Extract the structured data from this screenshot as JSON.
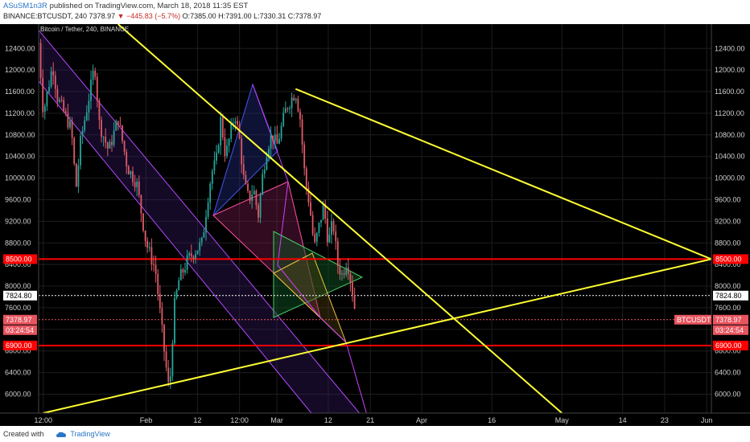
{
  "header": {
    "author": "ASuSM1n3R",
    "published": "published on TradingView.com, March 18, 2018 11:35 EST",
    "symbol_line": "BINANCE:BTCUSDT, 240",
    "change": "▼ −445.83 (−5.7%)",
    "ohlc": "O:7385.00 H:7391.00 L:7330.31 C:7378.97",
    "last_price": "7378.97"
  },
  "footer": {
    "created_with": "Created with",
    "brand": "TradingView"
  },
  "chart_data": {
    "type": "candlestick",
    "title": "Bitcoin / Tether, 240, BINANCE",
    "y_range": [
      5650,
      12850
    ],
    "y_ticks": [
      6000,
      6400,
      6800,
      7200,
      7600,
      8000,
      8400,
      8800,
      9200,
      9600,
      10000,
      10400,
      10800,
      11200,
      11600,
      12000,
      12400
    ],
    "x_range": [
      "2018-01-09",
      "2018-06-02"
    ],
    "x_ticks": [
      {
        "date": "2018-01-10",
        "label": "12:00"
      },
      {
        "date": "2018-02-01",
        "label": "Feb"
      },
      {
        "date": "2018-02-12",
        "label": "12"
      },
      {
        "date": "2018-02-21",
        "label": "12:00"
      },
      {
        "date": "2018-03-01",
        "label": "Mar"
      },
      {
        "date": "2018-03-12",
        "label": "12"
      },
      {
        "date": "2018-03-21",
        "label": "21"
      },
      {
        "date": "2018-04-01",
        "label": "Apr"
      },
      {
        "date": "2018-04-16",
        "label": "16"
      },
      {
        "date": "2018-05-01",
        "label": "May"
      },
      {
        "date": "2018-05-14",
        "label": "14"
      },
      {
        "date": "2018-05-23",
        "label": "23"
      },
      {
        "date": "2018-06-01",
        "label": "Jun"
      }
    ],
    "price_path": [
      [
        "2018-01-09",
        12500
      ],
      [
        "2018-01-10",
        11200
      ],
      [
        "2018-01-12",
        12100
      ],
      [
        "2018-01-13",
        11500
      ],
      [
        "2018-01-16",
        10900
      ],
      [
        "2018-01-17",
        9800
      ],
      [
        "2018-01-18",
        10700
      ],
      [
        "2018-01-20",
        11600
      ],
      [
        "2018-01-21",
        12100
      ],
      [
        "2018-01-22",
        11000
      ],
      [
        "2018-01-24",
        10500
      ],
      [
        "2018-01-26",
        11100
      ],
      [
        "2018-01-28",
        10200
      ],
      [
        "2018-01-30",
        9900
      ],
      [
        "2018-02-01",
        8800
      ],
      [
        "2018-02-03",
        8300
      ],
      [
        "2018-02-05",
        6700
      ],
      [
        "2018-02-06",
        6000
      ],
      [
        "2018-02-07",
        7600
      ],
      [
        "2018-02-08",
        8100
      ],
      [
        "2018-02-09",
        8300
      ],
      [
        "2018-02-10",
        8500
      ],
      [
        "2018-02-12",
        8700
      ],
      [
        "2018-02-13",
        8800
      ],
      [
        "2018-02-14",
        9500
      ],
      [
        "2018-02-15",
        10100
      ],
      [
        "2018-02-16",
        10300
      ],
      [
        "2018-02-17",
        11100
      ],
      [
        "2018-02-18",
        10400
      ],
      [
        "2018-02-20",
        11200
      ],
      [
        "2018-02-21",
        10700
      ],
      [
        "2018-02-22",
        9900
      ],
      [
        "2018-02-23",
        9600
      ],
      [
        "2018-02-24",
        9800
      ],
      [
        "2018-02-25",
        9300
      ],
      [
        "2018-02-26",
        10100
      ],
      [
        "2018-02-27",
        10600
      ],
      [
        "2018-02-28",
        10800
      ],
      [
        "2018-03-01",
        10600
      ],
      [
        "2018-03-03",
        11300
      ],
      [
        "2018-03-05",
        11600
      ],
      [
        "2018-03-06",
        11100
      ],
      [
        "2018-03-07",
        10000
      ],
      [
        "2018-03-08",
        9500
      ],
      [
        "2018-03-09",
        8700
      ],
      [
        "2018-03-10",
        9100
      ],
      [
        "2018-03-11",
        9500
      ],
      [
        "2018-03-12",
        8800
      ],
      [
        "2018-03-13",
        9200
      ],
      [
        "2018-03-14",
        8400
      ],
      [
        "2018-03-15",
        8200
      ],
      [
        "2018-03-16",
        8500
      ],
      [
        "2018-03-17",
        8000
      ],
      [
        "2018-03-18",
        7378.97
      ]
    ],
    "horizontal_levels": [
      {
        "price": 8500,
        "label": "8500.00",
        "color": "#ff0000"
      },
      {
        "price": 6900,
        "label": "6900.00",
        "color": "#ff0000"
      },
      {
        "price": 7824.8,
        "label": "7824.80",
        "color": "#ffffff",
        "style": "dotted"
      },
      {
        "price": 7378.97,
        "label": "7378.97",
        "color": "#e8555f",
        "style": "dotted"
      }
    ],
    "trendlines": [
      {
        "from": [
          "2018-03-05",
          11650
        ],
        "to": [
          "2018-06-02",
          8500
        ],
        "color": "#ffff33"
      },
      {
        "from": [
          "2018-01-10",
          5650
        ],
        "to": [
          "2018-06-02",
          8500
        ],
        "color": "#ffff33"
      },
      {
        "from": [
          "2018-01-26",
          12850
        ],
        "to": [
          "2018-05-01",
          5650
        ],
        "color": "#ffff33"
      }
    ],
    "price_tag_symbol": "BTCUSDT",
    "countdown": "03:24:54",
    "colors": {
      "background": "#000000",
      "up": "#26a69a",
      "down": "#e05a66",
      "grid": "#1e1e1e",
      "levels": "#ff0000",
      "trend": "#ffff33"
    }
  }
}
